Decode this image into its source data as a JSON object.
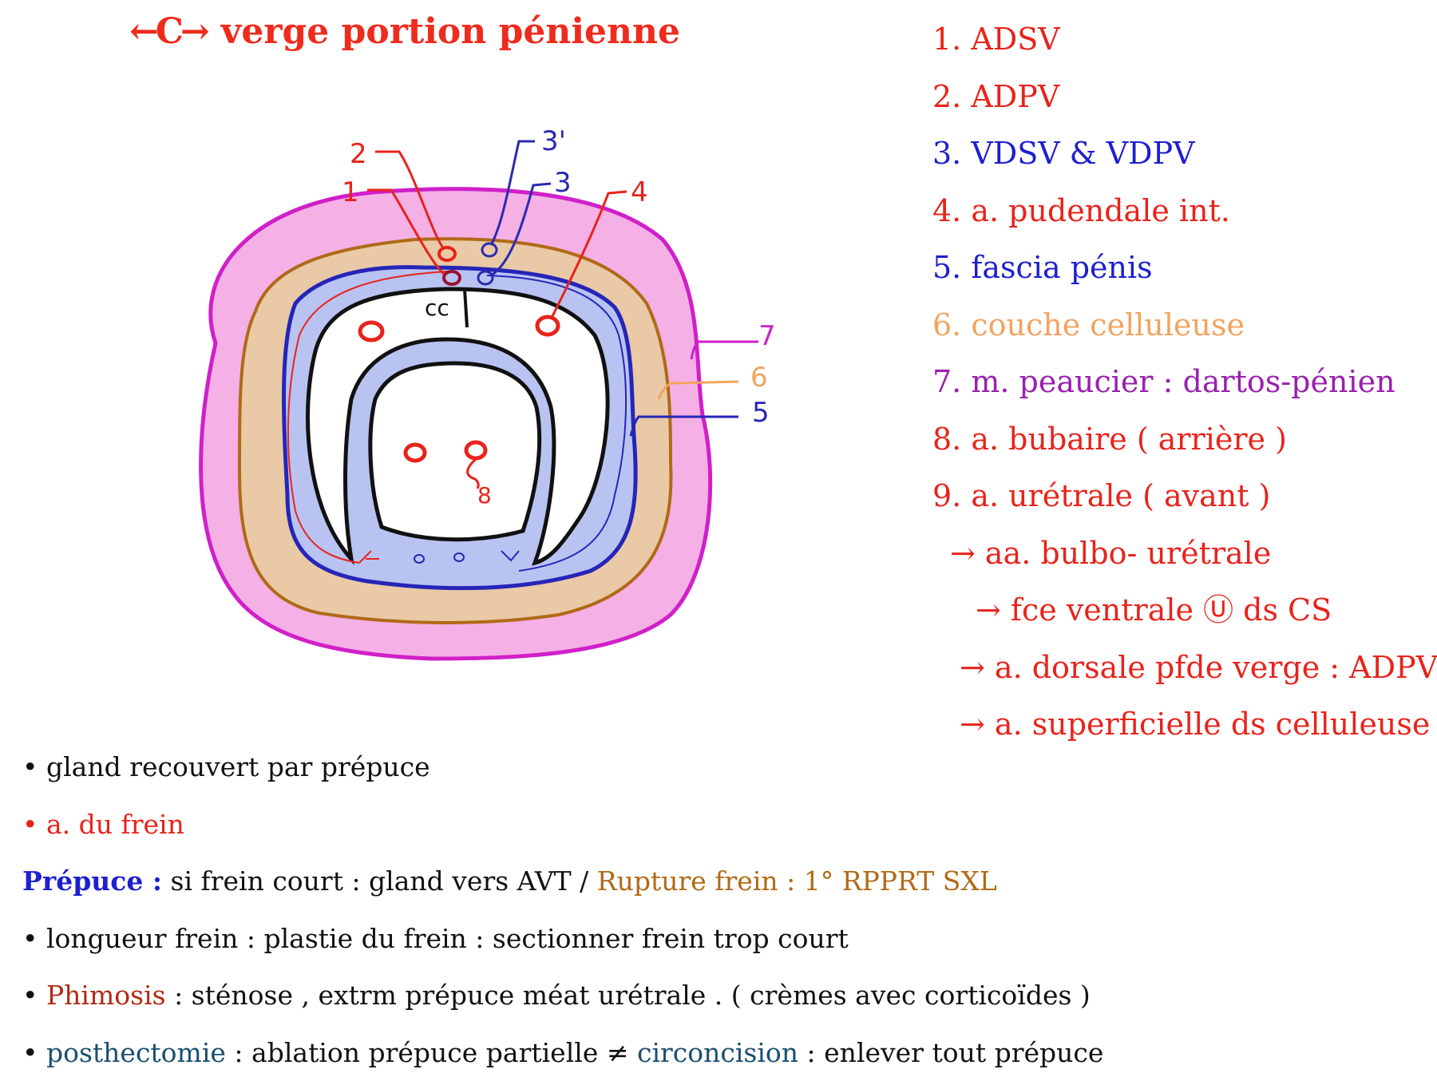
{
  "title": {
    "text": "verge portion pénienne",
    "arrow_icon": "←C→"
  },
  "legend": [
    {
      "text": "1. ADSV",
      "color": "#e8231b"
    },
    {
      "text": "2. ADPV",
      "color": "#e8231b"
    },
    {
      "text": "3. VDSV & VDPV",
      "color": "#1d1fd0"
    },
    {
      "text": "4. a. pudendale int.",
      "color": "#e8231b"
    },
    {
      "text": "5. fascia pénis",
      "color": "#1d1fd0"
    },
    {
      "text": "6. couche celluleuse",
      "color": "#f3a35e"
    },
    {
      "text": "7. m. peaucier : dartos-pénien",
      "color": "#9a1fb0"
    },
    {
      "text": "8. a. bubaire ( arrière )",
      "color": "#e8231b"
    },
    {
      "text": "9. a. urétrale ( avant )",
      "color": "#e8231b"
    },
    {
      "text": "→ aa. bulbo- urétrale",
      "color": "#e8231b"
    },
    {
      "text": "→ fce ventrale Ⓤ ds CS",
      "color": "#e8231b"
    },
    {
      "text": "→ a. dorsale pfde verge : ADPV",
      "color": "#e8231b"
    },
    {
      "text": "→ a. superficielle ds celluleuse",
      "color": "#e8231b"
    }
  ],
  "diagram": {
    "labels": {
      "l1": "1",
      "l2": "2",
      "l3": "3",
      "l3p": "3'",
      "l4": "4",
      "l5": "5",
      "l6": "6",
      "l7": "7",
      "l8": "8",
      "cc": "cc"
    },
    "colors": {
      "skin": "#f5b0e6",
      "skin_border": "#d020c8",
      "cellular": "#e9c9a6",
      "cellular_border": "#b06a16",
      "fascia": "#b9c3f1",
      "fascia_border": "#2525b8",
      "artery": "#e8231b",
      "vein": "#2a2ab0"
    }
  },
  "notes": {
    "n1": {
      "bullet": "•",
      "text": "gland recouvert par prépuce"
    },
    "n2": {
      "bullet": "•",
      "text": "a. du frein"
    },
    "n3": {
      "head": "Prépuce :",
      "text1": " si frein court : gland vers AVT / ",
      "text2": "Rupture frein : 1° RPPRT SXL"
    },
    "n4": {
      "bullet": "•",
      "text": "longueur frein : plastie du frein : sectionner frein trop court"
    },
    "n5": {
      "bullet": "•",
      "head": "Phimosis",
      "text": " : sténose , extrm prépuce méat urétrale . ( crèmes avec corticoïdes )"
    },
    "n6": {
      "bullet": "•",
      "head1": "posthectomie",
      "text1": " : ablation prépuce partielle ≠ ",
      "head2": "circoncision",
      "text2": " : enlever tout prépuce"
    }
  }
}
